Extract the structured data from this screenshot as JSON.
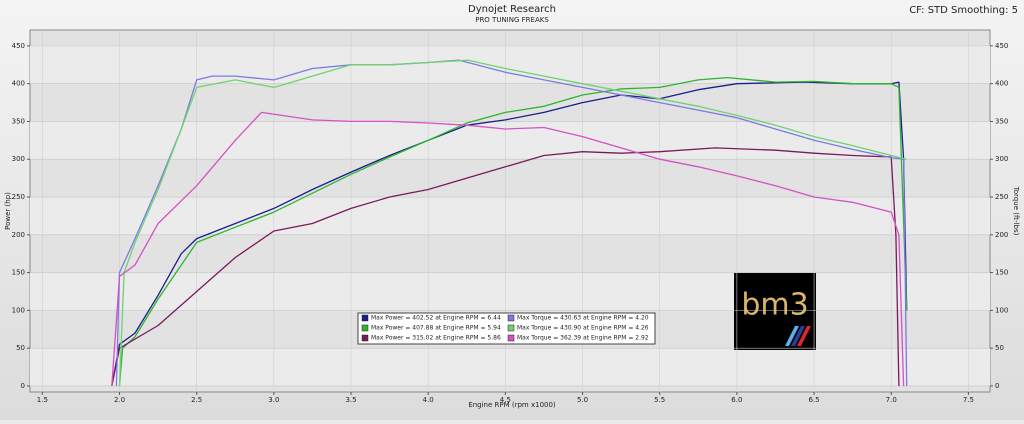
{
  "chart_data": {
    "type": "line",
    "title": "Dynojet Research",
    "subtitle": "PRO TUNING FREAKS",
    "corner_note": "CF: STD Smoothing: 5",
    "x_label": "Engine RPM (rpm x1000)",
    "y_label": "Power (hp)",
    "y2_label": "Torque (ft-lbs)",
    "logo_text": "bm3",
    "xlim": [
      1.42,
      7.64
    ],
    "xticks": [
      1.5,
      {
        "value": 2,
        "label": "2.0"
      },
      2.5,
      {
        "value": 3,
        "label": "3.0"
      },
      3.5,
      {
        "value": 4,
        "label": "4.0"
      },
      4.5,
      {
        "value": 5,
        "label": "5.0"
      },
      5.5,
      {
        "value": 6,
        "label": "6.0"
      },
      6.5,
      {
        "value": 7,
        "label": "7.0"
      },
      7.5
    ],
    "ylim": [
      -8,
      471
    ],
    "yticks": [
      0,
      50,
      100,
      150,
      200,
      250,
      300,
      350,
      400,
      450
    ],
    "y2lim": [
      -8,
      471
    ],
    "y2ticks": [
      0,
      50,
      100,
      150,
      200,
      250,
      300,
      350,
      400,
      450
    ],
    "grid": true,
    "series": [
      {
        "name": "Max Power = 402.52 at Engine RPM = 6.44",
        "color": "#1c1c8c",
        "x": [
          1.95,
          2.0,
          2.1,
          2.25,
          2.4,
          2.5,
          2.75,
          3.0,
          3.25,
          3.5,
          3.75,
          4.0,
          4.25,
          4.5,
          4.75,
          5.0,
          5.25,
          5.5,
          5.75,
          6.0,
          6.44,
          6.75,
          7.0,
          7.05,
          7.08,
          7.1
        ],
        "values": [
          0,
          55,
          70,
          120,
          175,
          195,
          215,
          235,
          260,
          283,
          305,
          325,
          345,
          352,
          362,
          375,
          385,
          380,
          392,
          400,
          402,
          400,
          400,
          402,
          300,
          100
        ]
      },
      {
        "name": "Max Power = 407.88 at Engine RPM = 5.94",
        "color": "#2db52d",
        "x": [
          2.0,
          2.02,
          2.1,
          2.25,
          2.5,
          2.75,
          3.0,
          3.25,
          3.5,
          3.75,
          4.0,
          4.25,
          4.5,
          4.75,
          5.0,
          5.25,
          5.5,
          5.75,
          5.94,
          6.25,
          6.5,
          6.75,
          7.0,
          7.05,
          7.1
        ],
        "values": [
          0,
          50,
          65,
          115,
          190,
          210,
          230,
          255,
          280,
          303,
          325,
          348,
          362,
          370,
          385,
          393,
          395,
          405,
          408,
          402,
          403,
          400,
          400,
          395,
          100
        ]
      },
      {
        "name": "Max Power = 315.02 at Engine RPM = 5.86",
        "color": "#7a1a5e",
        "x": [
          1.95,
          2.0,
          2.25,
          2.5,
          2.75,
          3.0,
          3.25,
          3.5,
          3.75,
          4.0,
          4.25,
          4.5,
          4.75,
          5.0,
          5.25,
          5.5,
          5.86,
          6.25,
          6.5,
          6.75,
          7.0,
          7.03,
          7.05
        ],
        "values": [
          0,
          50,
          80,
          125,
          170,
          205,
          215,
          235,
          250,
          260,
          275,
          290,
          305,
          310,
          308,
          310,
          315,
          312,
          308,
          305,
          303,
          200,
          0
        ]
      },
      {
        "name": "Max Torque = 430.63 at Engine RPM = 4.20",
        "color": "#7b7be0",
        "x": [
          1.98,
          2.0,
          2.1,
          2.25,
          2.4,
          2.5,
          2.6,
          2.75,
          3.0,
          3.25,
          3.5,
          3.75,
          4.0,
          4.2,
          4.5,
          4.75,
          5.0,
          5.25,
          5.5,
          5.75,
          6.0,
          6.25,
          6.5,
          6.75,
          7.0,
          7.08,
          7.1
        ],
        "values": [
          0,
          150,
          195,
          265,
          340,
          405,
          410,
          410,
          405,
          420,
          425,
          425,
          428,
          431,
          415,
          405,
          395,
          385,
          375,
          365,
          355,
          340,
          325,
          313,
          302,
          300,
          0
        ]
      },
      {
        "name": "Max Torque = 430.90 at Engine RPM = 4.26",
        "color": "#6fd26f",
        "x": [
          2.0,
          2.03,
          2.1,
          2.25,
          2.4,
          2.5,
          2.75,
          3.0,
          3.25,
          3.5,
          3.75,
          4.0,
          4.26,
          4.5,
          4.75,
          5.0,
          5.25,
          5.5,
          5.75,
          6.0,
          6.25,
          6.5,
          6.75,
          7.0,
          7.1
        ],
        "values": [
          0,
          150,
          190,
          260,
          340,
          395,
          405,
          395,
          410,
          425,
          425,
          428,
          431,
          420,
          410,
          400,
          390,
          380,
          370,
          358,
          345,
          330,
          318,
          305,
          300
        ]
      },
      {
        "name": "Max Torque = 362.39 at Engine RPM = 2.92",
        "color": "#d452c6",
        "x": [
          1.95,
          2.0,
          2.1,
          2.25,
          2.5,
          2.75,
          2.92,
          3.25,
          3.5,
          3.75,
          4.0,
          4.25,
          4.5,
          4.75,
          5.0,
          5.25,
          5.5,
          5.75,
          6.0,
          6.25,
          6.5,
          6.75,
          7.0,
          7.05,
          7.08
        ],
        "values": [
          0,
          145,
          160,
          215,
          265,
          325,
          362,
          352,
          350,
          350,
          348,
          345,
          340,
          342,
          330,
          315,
          300,
          290,
          278,
          265,
          250,
          243,
          230,
          200,
          0
        ]
      }
    ]
  }
}
